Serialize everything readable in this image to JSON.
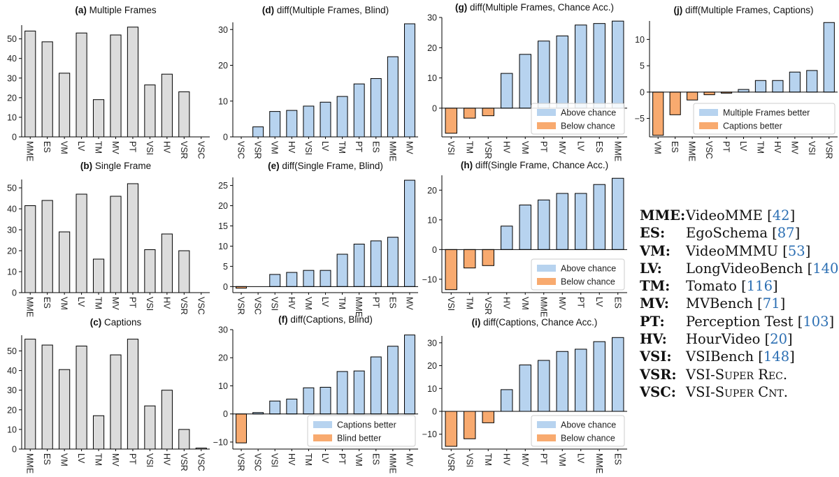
{
  "colors": {
    "gray_bar": "#dcdcdc",
    "positive": "#b7d3ef",
    "negative": "#f8aa6f",
    "edge": "#000000",
    "reference_link": "#2c6fb3"
  },
  "chart_data": [
    {
      "id": "a",
      "type": "bar",
      "title_label": "(a)",
      "title_text": "Multiple Frames",
      "categories": [
        "MME",
        "ES",
        "VM",
        "LV",
        "TM",
        "MV",
        "PT",
        "VSI",
        "HV",
        "VSR",
        "VSC"
      ],
      "values": [
        54,
        48.5,
        32.5,
        53,
        19,
        52,
        56,
        26.5,
        32,
        23,
        0
      ],
      "yticks": [
        0,
        10,
        20,
        30,
        40,
        50
      ],
      "ylim": [
        0,
        57
      ],
      "colored": false,
      "legend": null
    },
    {
      "id": "b",
      "type": "bar",
      "title_label": "(b)",
      "title_text": "Single Frame",
      "categories": [
        "MME",
        "ES",
        "VM",
        "LV",
        "TM",
        "MV",
        "PT",
        "VSI",
        "HV",
        "VSR",
        "VSC"
      ],
      "values": [
        41.5,
        44,
        29,
        47,
        16,
        46,
        52,
        20.5,
        28,
        20,
        0
      ],
      "yticks": [
        0,
        10,
        20,
        30,
        40,
        50
      ],
      "ylim": [
        0,
        54
      ],
      "colored": false,
      "legend": null
    },
    {
      "id": "c",
      "type": "bar",
      "title_label": "(c)",
      "title_text": "Captions",
      "categories": [
        "MME",
        "ES",
        "VM",
        "LV",
        "TM",
        "MV",
        "PT",
        "VSI",
        "HV",
        "VSR",
        "VSC"
      ],
      "values": [
        56,
        53,
        40.5,
        52.5,
        17,
        48,
        56,
        22,
        30,
        10,
        0.5
      ],
      "yticks": [
        0,
        10,
        20,
        30,
        40,
        50
      ],
      "ylim": [
        0,
        58
      ],
      "colored": false,
      "legend": null
    },
    {
      "id": "d",
      "type": "bar",
      "title_label": "(d)",
      "title_text": "diff(Multiple Frames, Blind)",
      "categories": [
        "VSC",
        "VSR",
        "VM",
        "HV",
        "VSI",
        "LV",
        "TM",
        "PT",
        "ES",
        "MME",
        "MV"
      ],
      "values": [
        0,
        2.8,
        7.1,
        7.4,
        8.6,
        9.7,
        11.3,
        14.8,
        16.3,
        22.4,
        31.6
      ],
      "yticks": [
        0,
        10,
        20,
        30
      ],
      "ylim": [
        0,
        32
      ],
      "colored": true,
      "legend": null
    },
    {
      "id": "e",
      "type": "bar",
      "title_label": "(e)",
      "title_text": "diff(Single Frame, Blind)",
      "categories": [
        "VSR",
        "VSC",
        "VSI",
        "HV",
        "VM",
        "LV",
        "TM",
        "MME",
        "PT",
        "ES",
        "MV"
      ],
      "values": [
        -0.4,
        0,
        3,
        3.5,
        4,
        4,
        8,
        10.5,
        11.3,
        12.2,
        26.3
      ],
      "yticks": [
        0,
        5,
        10,
        15,
        20,
        25
      ],
      "ylim": [
        -1.5,
        27
      ],
      "colored": true,
      "legend": null
    },
    {
      "id": "f",
      "type": "bar",
      "title_label": "(f)",
      "title_text": "diff(Captions, Blind)",
      "categories": [
        "VSR",
        "VSC",
        "VSI",
        "HV",
        "TM",
        "LV",
        "PT",
        "VM",
        "ES",
        "MME",
        "MV"
      ],
      "values": [
        -10.3,
        0.5,
        4.6,
        5.3,
        9.3,
        9.5,
        15.1,
        15.3,
        20.3,
        24.1,
        28.1
      ],
      "yticks": [
        -10,
        0,
        10,
        20,
        30
      ],
      "ylim": [
        -12.5,
        30
      ],
      "colored": true,
      "legend": {
        "pos": "lower-right",
        "entries": [
          "Captions better",
          "Blind better"
        ]
      }
    },
    {
      "id": "g",
      "type": "bar",
      "title_label": "(g)",
      "title_text": "diff(Multiple Frames, Chance Acc.)",
      "categories": [
        "VSI",
        "TM",
        "VSR",
        "HV",
        "VM",
        "PT",
        "MV",
        "LV",
        "ES",
        "MME"
      ],
      "values": [
        -8.3,
        -3.3,
        -2.5,
        11.5,
        17.8,
        22.2,
        23.9,
        27.5,
        28,
        28.8
      ],
      "yticks": [
        0,
        10,
        20,
        30
      ],
      "ylim": [
        -9.5,
        30
      ],
      "colored": true,
      "legend": {
        "pos": "lower-right",
        "entries": [
          "Above chance",
          "Below chance"
        ]
      }
    },
    {
      "id": "h",
      "type": "bar",
      "title_label": "(h)",
      "title_text": "diff(Single Frame, Chance Acc.)",
      "categories": [
        "VSI",
        "TM",
        "VSR",
        "HV",
        "VM",
        "MME",
        "MV",
        "PT",
        "LV",
        "ES"
      ],
      "values": [
        -13.5,
        -6.2,
        -5.4,
        7.9,
        15,
        16.7,
        18.9,
        18.9,
        21.9,
        24
      ],
      "yticks": [
        -10,
        0,
        10,
        20
      ],
      "ylim": [
        -14.5,
        25
      ],
      "colored": true,
      "legend": {
        "pos": "lower-right",
        "entries": [
          "Above chance",
          "Below chance"
        ]
      }
    },
    {
      "id": "i",
      "type": "bar",
      "title_label": "(i)",
      "title_text": "diff(Captions, Chance Acc.)",
      "categories": [
        "VSR",
        "VSI",
        "TM",
        "HV",
        "MV",
        "PT",
        "VM",
        "LV",
        "MME",
        "ES"
      ],
      "values": [
        -15.3,
        -12,
        -5,
        9.5,
        20.3,
        22.3,
        26.2,
        27.2,
        30.5,
        32.3
      ],
      "yticks": [
        -10,
        0,
        10,
        20,
        30
      ],
      "ylim": [
        -16.5,
        33
      ],
      "colored": true,
      "legend": {
        "pos": "lower-right",
        "entries": [
          "Above chance",
          "Below chance"
        ]
      }
    },
    {
      "id": "j",
      "type": "bar",
      "title_label": "(j)",
      "title_text": "diff(Multiple Frames, Captions)",
      "categories": [
        "VM",
        "ES",
        "MME",
        "VSC",
        "PT",
        "LV",
        "TM",
        "HV",
        "MV",
        "VSI",
        "VSR"
      ],
      "values": [
        -8.2,
        -4.3,
        -1.5,
        -0.5,
        -0.2,
        0.5,
        2.2,
        2.2,
        3.8,
        4.1,
        13.2
      ],
      "yticks": [
        -5,
        0,
        5,
        10
      ],
      "ylim": [
        -8.5,
        13.5
      ],
      "colored": true,
      "legend": {
        "pos": "lower-right",
        "entries": [
          "Multiple Frames better",
          "Captions better"
        ]
      }
    }
  ],
  "benchmark_legend": [
    {
      "abbr": "MME",
      "sep": ":",
      "name": "VideoMME",
      "ref": "42",
      "smallcaps": false
    },
    {
      "abbr": "ES",
      "sep": ":",
      "name": "EgoSchema",
      "ref": "87",
      "smallcaps": false
    },
    {
      "abbr": "VM",
      "sep": ":",
      "name": "VideoMMMU",
      "ref": "53",
      "smallcaps": false
    },
    {
      "abbr": "LV",
      "sep": ":",
      "name": "LongVideoBench",
      "ref": "140",
      "smallcaps": false
    },
    {
      "abbr": "TM",
      "sep": ":",
      "name": "Tomato",
      "ref": "116",
      "smallcaps": false
    },
    {
      "abbr": "MV",
      "sep": ":",
      "name": "MVBench",
      "ref": "71",
      "smallcaps": false
    },
    {
      "abbr": "PT",
      "sep": ":",
      "name": "Perception Test",
      "ref": "103",
      "smallcaps": false
    },
    {
      "abbr": "HV",
      "sep": ":",
      "name": "HourVideo",
      "ref": "20",
      "smallcaps": false
    },
    {
      "abbr": "VSI",
      "sep": ":",
      "name": "VSIBench",
      "ref": "148",
      "smallcaps": false
    },
    {
      "abbr": "VSR",
      "sep": ":",
      "name": "VSI-Super Rec.",
      "ref": "",
      "smallcaps": true
    },
    {
      "abbr": "VSC",
      "sep": ":",
      "name": "VSI-Super Cnt.",
      "ref": "",
      "smallcaps": true
    }
  ]
}
